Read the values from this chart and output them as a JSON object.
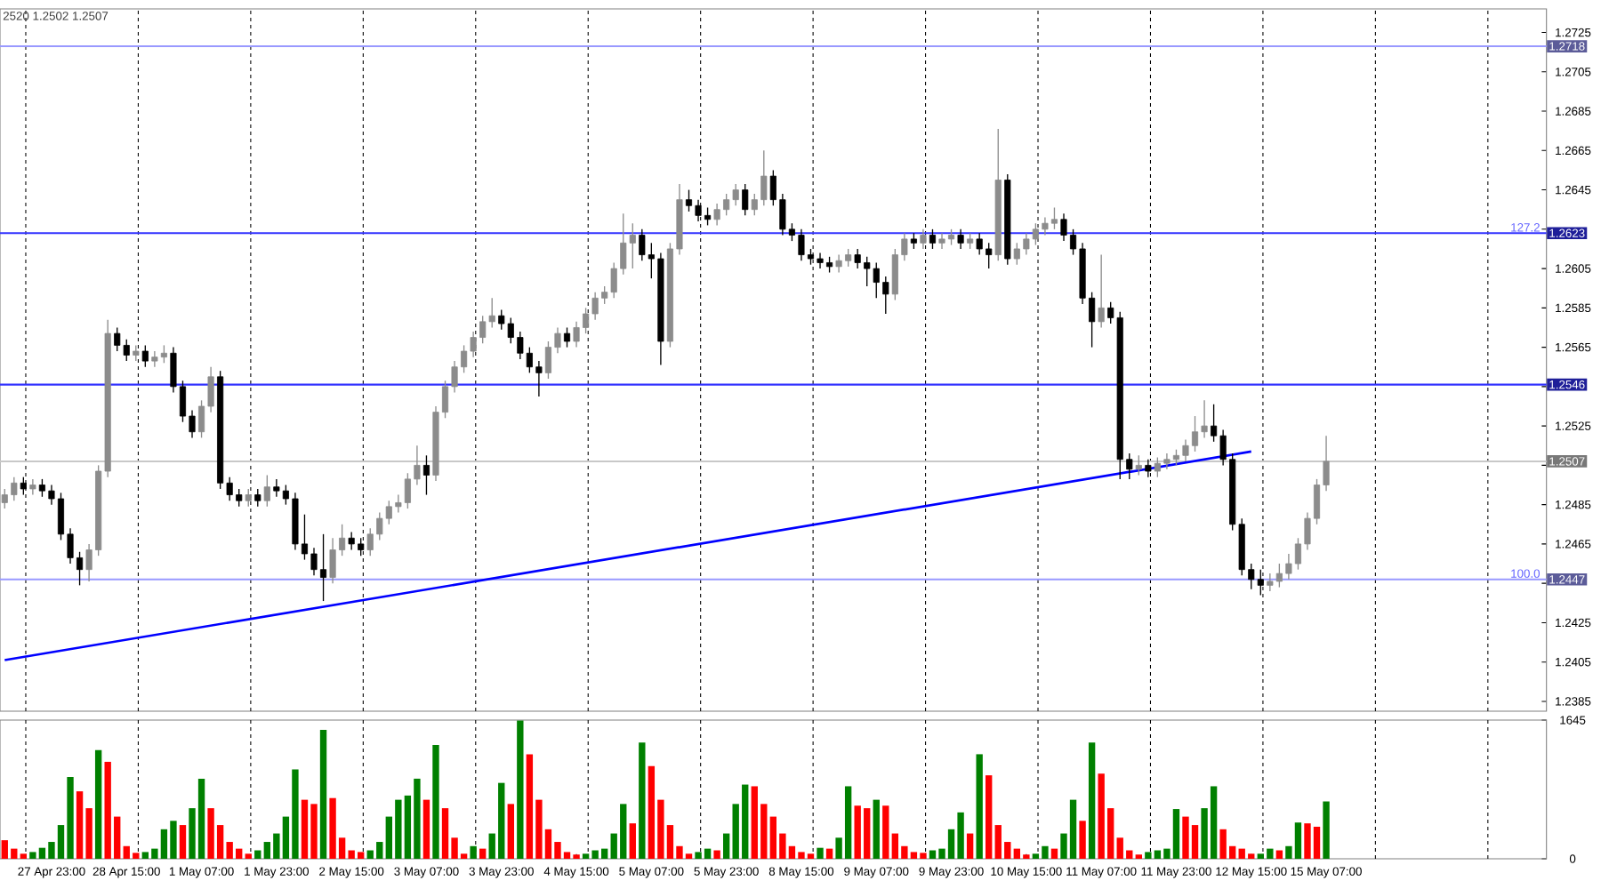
{
  "chart_data": [
    {
      "type": "candlestick",
      "categories": [
        null,
        null,
        null,
        null,
        null,
        null,
        null,
        null,
        null,
        null,
        null,
        null,
        null,
        null,
        null,
        null,
        null,
        null,
        null,
        null,
        null,
        null,
        null,
        null,
        null,
        null,
        null,
        null,
        null,
        null,
        null,
        null,
        null,
        null,
        null,
        null,
        null,
        null,
        null,
        null,
        null,
        null,
        null,
        null,
        null,
        null,
        null,
        null,
        null,
        null,
        null,
        null,
        null,
        null,
        null,
        null,
        null,
        null,
        null,
        null,
        null,
        null,
        null,
        null,
        null,
        null,
        null,
        null,
        null,
        null,
        null,
        null,
        null,
        null,
        null,
        null,
        null,
        null,
        null,
        null,
        null,
        null,
        null,
        null,
        null,
        null,
        null,
        null,
        null,
        null,
        null,
        null,
        null,
        null,
        null,
        null,
        null,
        null,
        null,
        null,
        null,
        null,
        null,
        null,
        null,
        null,
        null,
        null,
        null,
        null,
        null,
        null,
        null,
        null,
        null,
        null,
        null,
        null,
        null,
        null,
        null,
        null,
        null,
        null,
        null,
        null,
        null,
        null,
        null,
        null,
        null,
        null,
        null,
        null,
        null,
        null,
        null,
        null,
        null,
        null,
        null,
        null,
        null,
        null,
        null,
        null,
        null,
        null,
        null,
        null,
        null,
        null,
        null,
        null,
        null,
        null,
        null,
        null,
        null,
        null,
        null,
        null,
        null,
        null,
        null
      ],
      "ohlc": [
        [
          1.2486,
          1.2493,
          1.2483,
          1.249
        ],
        [
          1.249,
          1.2499,
          1.2487,
          1.2496
        ],
        [
          1.2496,
          1.2499,
          1.249,
          1.2493
        ],
        [
          1.2493,
          1.2498,
          1.249,
          1.2495
        ],
        [
          1.2495,
          1.2498,
          1.2489,
          1.2492
        ],
        [
          1.2492,
          1.2495,
          1.2485,
          1.2488
        ],
        [
          1.2488,
          1.2491,
          1.2467,
          1.247
        ],
        [
          1.247,
          1.2473,
          1.2455,
          1.2458
        ],
        [
          1.2458,
          1.2461,
          1.2444,
          1.2452
        ],
        [
          1.2452,
          1.2465,
          1.2446,
          1.2462
        ],
        [
          1.2462,
          1.2505,
          1.2459,
          1.2502
        ],
        [
          1.2502,
          1.2579,
          1.2499,
          1.2572
        ],
        [
          1.2572,
          1.2575,
          1.2563,
          1.2566
        ],
        [
          1.2566,
          1.2569,
          1.2558,
          1.2561
        ],
        [
          1.2561,
          1.2566,
          1.2558,
          1.2563
        ],
        [
          1.2563,
          1.2566,
          1.2555,
          1.2558
        ],
        [
          1.2558,
          1.2563,
          1.2555,
          1.256
        ],
        [
          1.256,
          1.2566,
          1.2557,
          1.2562
        ],
        [
          1.2562,
          1.2565,
          1.2542,
          1.2545
        ],
        [
          1.2545,
          1.2548,
          1.2527,
          1.253
        ],
        [
          1.253,
          1.2533,
          1.2519,
          1.2522
        ],
        [
          1.2522,
          1.2538,
          1.2519,
          1.2535
        ],
        [
          1.2535,
          1.2555,
          1.2532,
          1.255
        ],
        [
          1.255,
          1.2553,
          1.2493,
          1.2496
        ],
        [
          1.2496,
          1.2499,
          1.2487,
          1.249
        ],
        [
          1.249,
          1.2493,
          1.2484,
          1.2487
        ],
        [
          1.2487,
          1.2493,
          1.2484,
          1.249
        ],
        [
          1.249,
          1.2493,
          1.2484,
          1.2487
        ],
        [
          1.2487,
          1.25,
          1.2484,
          1.2494
        ],
        [
          1.2494,
          1.2498,
          1.2489,
          1.2492
        ],
        [
          1.2492,
          1.2495,
          1.2485,
          1.2488
        ],
        [
          1.2488,
          1.2491,
          1.2462,
          1.2465
        ],
        [
          1.2465,
          1.248,
          1.2457,
          1.246
        ],
        [
          1.246,
          1.2463,
          1.2449,
          1.2452
        ],
        [
          1.2452,
          1.247,
          1.2436,
          1.2448
        ],
        [
          1.2448,
          1.2468,
          1.2445,
          1.2462
        ],
        [
          1.2462,
          1.2475,
          1.2459,
          1.2468
        ],
        [
          1.2468,
          1.2471,
          1.2462,
          1.2465
        ],
        [
          1.2465,
          1.2468,
          1.2459,
          1.2462
        ],
        [
          1.2462,
          1.2473,
          1.2459,
          1.247
        ],
        [
          1.247,
          1.2481,
          1.2467,
          1.2478
        ],
        [
          1.2478,
          1.2487,
          1.2475,
          1.2484
        ],
        [
          1.2484,
          1.249,
          1.2481,
          1.2486
        ],
        [
          1.2486,
          1.2501,
          1.2483,
          1.2498
        ],
        [
          1.2498,
          1.2515,
          1.2495,
          1.2505
        ],
        [
          1.2505,
          1.251,
          1.249,
          1.25
        ],
        [
          1.25,
          1.2535,
          1.2497,
          1.2532
        ],
        [
          1.2532,
          1.2548,
          1.2529,
          1.2545
        ],
        [
          1.2545,
          1.2558,
          1.2542,
          1.2555
        ],
        [
          1.2555,
          1.2566,
          1.2552,
          1.2563
        ],
        [
          1.2563,
          1.2573,
          1.256,
          1.257
        ],
        [
          1.257,
          1.2581,
          1.2567,
          1.2578
        ],
        [
          1.2578,
          1.259,
          1.2575,
          1.2581
        ],
        [
          1.2581,
          1.2584,
          1.2574,
          1.2577
        ],
        [
          1.2577,
          1.258,
          1.2567,
          1.257
        ],
        [
          1.257,
          1.2573,
          1.2559,
          1.2562
        ],
        [
          1.2562,
          1.2565,
          1.2552,
          1.2555
        ],
        [
          1.2555,
          1.2558,
          1.254,
          1.2552
        ],
        [
          1.2552,
          1.2568,
          1.2549,
          1.2565
        ],
        [
          1.2565,
          1.2575,
          1.2562,
          1.2572
        ],
        [
          1.2572,
          1.2575,
          1.2565,
          1.2568
        ],
        [
          1.2568,
          1.2578,
          1.2565,
          1.2575
        ],
        [
          1.2575,
          1.2585,
          1.2572,
          1.2582
        ],
        [
          1.2582,
          1.2593,
          1.2579,
          1.259
        ],
        [
          1.259,
          1.2596,
          1.2587,
          1.2593
        ],
        [
          1.2593,
          1.2608,
          1.259,
          1.2605
        ],
        [
          1.2605,
          1.2633,
          1.2602,
          1.2618
        ],
        [
          1.2618,
          1.2628,
          1.2605,
          1.2622
        ],
        [
          1.2622,
          1.2625,
          1.2609,
          1.2612
        ],
        [
          1.2612,
          1.2618,
          1.26,
          1.261
        ],
        [
          1.261,
          1.2613,
          1.2556,
          1.2568
        ],
        [
          1.2568,
          1.2618,
          1.2565,
          1.2615
        ],
        [
          1.2615,
          1.2648,
          1.2612,
          1.264
        ],
        [
          1.264,
          1.2645,
          1.2634,
          1.2637
        ],
        [
          1.2637,
          1.264,
          1.2629,
          1.2632
        ],
        [
          1.2632,
          1.2636,
          1.2627,
          1.263
        ],
        [
          1.263,
          1.2638,
          1.2627,
          1.2635
        ],
        [
          1.2635,
          1.2643,
          1.2632,
          1.264
        ],
        [
          1.264,
          1.2648,
          1.2637,
          1.2645
        ],
        [
          1.2645,
          1.2648,
          1.2632,
          1.2635
        ],
        [
          1.2635,
          1.2643,
          1.2632,
          1.264
        ],
        [
          1.264,
          1.2665,
          1.2637,
          1.2652
        ],
        [
          1.2652,
          1.2655,
          1.2637,
          1.264
        ],
        [
          1.264,
          1.2643,
          1.2622,
          1.2625
        ],
        [
          1.2625,
          1.2628,
          1.2619,
          1.2622
        ],
        [
          1.2622,
          1.2625,
          1.2609,
          1.2612
        ],
        [
          1.2612,
          1.2615,
          1.2607,
          1.261
        ],
        [
          1.261,
          1.2613,
          1.2605,
          1.2608
        ],
        [
          1.2608,
          1.2611,
          1.2603,
          1.2606
        ],
        [
          1.2606,
          1.2612,
          1.2603,
          1.2609
        ],
        [
          1.2609,
          1.2615,
          1.2606,
          1.2612
        ],
        [
          1.2612,
          1.2615,
          1.2605,
          1.2608
        ],
        [
          1.2608,
          1.2611,
          1.2596,
          1.2605
        ],
        [
          1.2605,
          1.2608,
          1.259,
          1.2598
        ],
        [
          1.2598,
          1.2601,
          1.2582,
          1.2592
        ],
        [
          1.2592,
          1.2615,
          1.2589,
          1.2612
        ],
        [
          1.2612,
          1.2623,
          1.2609,
          1.262
        ],
        [
          1.262,
          1.2623,
          1.2615,
          1.2618
        ],
        [
          1.2618,
          1.2625,
          1.2615,
          1.2622
        ],
        [
          1.2622,
          1.2625,
          1.2615,
          1.2618
        ],
        [
          1.2618,
          1.2623,
          1.2615,
          1.262
        ],
        [
          1.262,
          1.2625,
          1.2617,
          1.2622
        ],
        [
          1.2622,
          1.2625,
          1.2615,
          1.2618
        ],
        [
          1.2618,
          1.2623,
          1.2615,
          1.262
        ],
        [
          1.262,
          1.2623,
          1.2612,
          1.2615
        ],
        [
          1.2615,
          1.2618,
          1.2605,
          1.2612
        ],
        [
          1.2612,
          1.2676,
          1.2609,
          1.265
        ],
        [
          1.265,
          1.2653,
          1.2607,
          1.261
        ],
        [
          1.261,
          1.2618,
          1.2607,
          1.2615
        ],
        [
          1.2615,
          1.2623,
          1.2612,
          1.262
        ],
        [
          1.262,
          1.2628,
          1.2617,
          1.2625
        ],
        [
          1.2625,
          1.2631,
          1.2622,
          1.2628
        ],
        [
          1.2628,
          1.2636,
          1.2625,
          1.263
        ],
        [
          1.263,
          1.2633,
          1.2619,
          1.2622
        ],
        [
          1.2622,
          1.2625,
          1.2612,
          1.2615
        ],
        [
          1.2615,
          1.2618,
          1.2587,
          1.259
        ],
        [
          1.259,
          1.2593,
          1.2565,
          1.2578
        ],
        [
          1.2578,
          1.2612,
          1.2575,
          1.2585
        ],
        [
          1.2585,
          1.2588,
          1.2577,
          1.258
        ],
        [
          1.258,
          1.2583,
          1.2498,
          1.2508
        ],
        [
          1.2508,
          1.2511,
          1.2498,
          1.2503
        ],
        [
          1.2503,
          1.251,
          1.25,
          1.2505
        ],
        [
          1.2505,
          1.2508,
          1.2499,
          1.2502
        ],
        [
          1.2502,
          1.2509,
          1.2499,
          1.2506
        ],
        [
          1.2506,
          1.2511,
          1.2503,
          1.2508
        ],
        [
          1.2508,
          1.2513,
          1.2505,
          1.251
        ],
        [
          1.251,
          1.2518,
          1.2507,
          1.2515
        ],
        [
          1.2515,
          1.253,
          1.2512,
          1.2522
        ],
        [
          1.2522,
          1.2538,
          1.2519,
          1.2525
        ],
        [
          1.2525,
          1.2536,
          1.2517,
          1.252
        ],
        [
          1.252,
          1.2523,
          1.2505,
          1.2508
        ],
        [
          1.2508,
          1.2511,
          1.2472,
          1.2475
        ],
        [
          1.2475,
          1.2478,
          1.2449,
          1.2452
        ],
        [
          1.2452,
          1.2455,
          1.2442,
          1.2447
        ],
        [
          1.2447,
          1.2452,
          1.2439,
          1.2444
        ],
        [
          1.2444,
          1.245,
          1.2441,
          1.2446
        ],
        [
          1.2446,
          1.2455,
          1.2443,
          1.245
        ],
        [
          1.245,
          1.246,
          1.2447,
          1.2455
        ],
        [
          1.2455,
          1.2468,
          1.2452,
          1.2465
        ],
        [
          1.2465,
          1.2481,
          1.2462,
          1.2478
        ],
        [
          1.2478,
          1.2498,
          1.2475,
          1.2495
        ],
        [
          1.2495,
          1.252,
          1.2492,
          1.2507
        ],
        null,
        null,
        null,
        null,
        null,
        null,
        null,
        null,
        null,
        null,
        null,
        null,
        null,
        null,
        null,
        null,
        null,
        null,
        null,
        null,
        null,
        null,
        null
      ],
      "ylim": [
        1.238,
        1.2737
      ],
      "yticks": [
        1.2385,
        1.2405,
        1.2425,
        {
          "value": 1.2445,
          "label": null
        },
        1.2465,
        1.2485,
        {
          "value": 1.2505,
          "label": null
        },
        1.2525,
        {
          "value": 1.2545,
          "label": null
        },
        1.2565,
        1.2585,
        1.2605,
        {
          "value": 1.2625,
          "label": null
        },
        1.2645,
        1.2665,
        1.2685,
        1.2705,
        1.2725
      ],
      "tick_labels": "y",
      "grid": "x",
      "series": [
        {
          "type": "line",
          "values": [
            1.2406,
            null,
            null,
            null,
            null,
            null,
            null,
            null,
            null,
            null,
            null,
            null,
            null,
            null,
            null,
            null,
            null,
            null,
            null,
            null,
            null,
            null,
            null,
            null,
            null,
            null,
            null,
            null,
            null,
            null,
            null,
            null,
            null,
            null,
            null,
            null,
            null,
            null,
            null,
            null,
            null,
            null,
            null,
            null,
            null,
            null,
            null,
            null,
            null,
            null,
            null,
            null,
            null,
            null,
            null,
            null,
            null,
            null,
            null,
            null,
            null,
            null,
            null,
            null,
            null,
            null,
            null,
            null,
            null,
            null,
            null,
            null,
            null,
            null,
            null,
            null,
            null,
            null,
            null,
            null,
            null,
            null,
            null,
            null,
            null,
            null,
            null,
            null,
            null,
            null,
            null,
            null,
            null,
            null,
            null,
            null,
            null,
            null,
            null,
            null,
            null,
            null,
            null,
            null,
            null,
            null,
            null,
            null,
            null,
            null,
            null,
            null,
            null,
            null,
            null,
            null,
            null,
            null,
            null,
            null,
            null,
            null,
            null,
            null,
            null,
            null,
            null,
            null,
            null,
            null,
            null,
            null,
            null,
            1.2512,
            null,
            null,
            null,
            null,
            null,
            null,
            null,
            null,
            null,
            null,
            null,
            null,
            null,
            null,
            null,
            null,
            null,
            null,
            null,
            null,
            null,
            null,
            null,
            null,
            null,
            null,
            null,
            null,
            null,
            null,
            null
          ],
          "color": "#0000ff"
        }
      ],
      "ref_lines": [
        {
          "axis": "y",
          "value": 1.2718,
          "label": "1.2718",
          "color": "#9999ff"
        },
        {
          "axis": "y",
          "value": 1.2623,
          "label": "1.2623",
          "color": "#3333ff"
        },
        {
          "axis": "y",
          "value": 1.2546,
          "label": "1.2546",
          "color": "#3333ff"
        },
        {
          "axis": "y",
          "value": 1.2507,
          "label": "1.2507",
          "color": "#c8c8c8"
        },
        {
          "axis": "y",
          "value": 1.2447,
          "label": "1.2447",
          "color": "#9999ff"
        }
      ],
      "annotations": [
        "2520 1.2502 1.2507",
        {
          "text": "127.2",
          "y": 1.2623
        },
        {
          "text": "100.0",
          "y": 1.2447
        }
      ]
    },
    {
      "type": "bar",
      "categories": [
        null,
        null,
        null,
        null,
        null,
        "27 Apr 23:00",
        null,
        null,
        null,
        null,
        null,
        null,
        null,
        "28 Apr 15:00",
        null,
        null,
        null,
        null,
        null,
        null,
        null,
        "1 May 07:00",
        null,
        null,
        null,
        null,
        null,
        null,
        null,
        "1 May 23:00",
        null,
        null,
        null,
        null,
        null,
        null,
        null,
        "2 May 15:00",
        null,
        null,
        null,
        null,
        null,
        null,
        null,
        "3 May 07:00",
        null,
        null,
        null,
        null,
        null,
        null,
        null,
        "3 May 23:00",
        null,
        null,
        null,
        null,
        null,
        null,
        null,
        "4 May 15:00",
        null,
        null,
        null,
        null,
        null,
        null,
        null,
        "5 May 07:00",
        null,
        null,
        null,
        null,
        null,
        null,
        null,
        "5 May 23:00",
        null,
        null,
        null,
        null,
        null,
        null,
        null,
        "8 May 15:00",
        null,
        null,
        null,
        null,
        null,
        null,
        null,
        "9 May 07:00",
        null,
        null,
        null,
        null,
        null,
        null,
        null,
        "9 May 23:00",
        null,
        null,
        null,
        null,
        null,
        null,
        null,
        "10 May 15:00",
        null,
        null,
        null,
        null,
        null,
        null,
        null,
        "11 May 07:00",
        null,
        null,
        null,
        null,
        null,
        null,
        null,
        "11 May 23:00",
        null,
        null,
        null,
        null,
        null,
        null,
        null,
        "12 May 15:00",
        null,
        null,
        null,
        null,
        null,
        null,
        null,
        "15 May 07:00",
        null,
        null,
        null,
        null,
        null,
        null,
        null,
        null,
        null,
        null,
        null,
        null,
        null,
        null,
        null,
        null,
        null,
        null,
        null,
        null,
        null,
        null,
        null
      ],
      "values": [
        220,
        120,
        60,
        80,
        130,
        200,
        400,
        970,
        800,
        600,
        1290,
        1150,
        500,
        150,
        70,
        80,
        120,
        350,
        450,
        400,
        600,
        950,
        600,
        400,
        200,
        120,
        60,
        100,
        200,
        300,
        500,
        1060,
        700,
        650,
        1530,
        720,
        250,
        100,
        80,
        100,
        200,
        500,
        700,
        750,
        950,
        700,
        1350,
        600,
        250,
        60,
        150,
        120,
        300,
        900,
        650,
        1640,
        1240,
        700,
        350,
        200,
        80,
        50,
        60,
        100,
        120,
        300,
        650,
        420,
        1380,
        1100,
        700,
        400,
        150,
        60,
        80,
        120,
        100,
        300,
        650,
        880,
        860,
        650,
        500,
        300,
        150,
        80,
        60,
        130,
        120,
        250,
        860,
        630,
        600,
        700,
        630,
        300,
        150,
        80,
        70,
        100,
        120,
        350,
        550,
        300,
        1240,
        990,
        400,
        200,
        120,
        50,
        60,
        150,
        120,
        300,
        700,
        450,
        1380,
        1010,
        600,
        250,
        100,
        50,
        80,
        100,
        120,
        590,
        500,
        400,
        600,
        860,
        350,
        150,
        120,
        60,
        60,
        120,
        100,
        150,
        430,
        420,
        380,
        680,
        null,
        null,
        null,
        null,
        null,
        null,
        null,
        null,
        null,
        null,
        null,
        null,
        null,
        null,
        null,
        null,
        null,
        null,
        null,
        null,
        null,
        null,
        null
      ],
      "colors": [
        "#ff0000",
        "#ff0000",
        "#ff0000",
        "#008000",
        "#008000",
        "#008000",
        "#008000",
        "#008000",
        "#ff0000",
        "#ff0000",
        "#008000",
        "#ff0000",
        "#ff0000",
        "#ff0000",
        "#ff0000",
        "#008000",
        "#008000",
        "#008000",
        "#008000",
        "#ff0000",
        "#008000",
        "#008000",
        "#ff0000",
        "#ff0000",
        "#ff0000",
        "#ff0000",
        "#ff0000",
        "#008000",
        "#008000",
        "#008000",
        "#008000",
        "#008000",
        "#ff0000",
        "#ff0000",
        "#008000",
        "#ff0000",
        "#ff0000",
        "#ff0000",
        "#ff0000",
        "#008000",
        "#008000",
        "#008000",
        "#008000",
        "#008000",
        "#008000",
        "#ff0000",
        "#008000",
        "#ff0000",
        "#ff0000",
        "#ff0000",
        "#008000",
        "#ff0000",
        "#008000",
        "#008000",
        "#ff0000",
        "#008000",
        "#ff0000",
        "#ff0000",
        "#ff0000",
        "#ff0000",
        "#ff0000",
        "#ff0000",
        "#008000",
        "#008000",
        "#008000",
        "#008000",
        "#008000",
        "#ff0000",
        "#008000",
        "#ff0000",
        "#ff0000",
        "#ff0000",
        "#ff0000",
        "#ff0000",
        "#008000",
        "#008000",
        "#ff0000",
        "#008000",
        "#008000",
        "#008000",
        "#ff0000",
        "#ff0000",
        "#ff0000",
        "#ff0000",
        "#ff0000",
        "#ff0000",
        "#ff0000",
        "#008000",
        "#ff0000",
        "#008000",
        "#008000",
        "#ff0000",
        "#ff0000",
        "#008000",
        "#ff0000",
        "#ff0000",
        "#ff0000",
        "#ff0000",
        "#ff0000",
        "#008000",
        "#008000",
        "#008000",
        "#008000",
        "#ff0000",
        "#008000",
        "#ff0000",
        "#ff0000",
        "#ff0000",
        "#ff0000",
        "#ff0000",
        "#008000",
        "#008000",
        "#ff0000",
        "#008000",
        "#008000",
        "#ff0000",
        "#008000",
        "#ff0000",
        "#ff0000",
        "#ff0000",
        "#ff0000",
        "#ff0000",
        "#008000",
        "#008000",
        "#008000",
        "#008000",
        "#ff0000",
        "#ff0000",
        "#008000",
        "#008000",
        "#ff0000",
        "#ff0000",
        "#ff0000",
        "#ff0000",
        "#008000",
        "#008000",
        "#ff0000",
        "#008000",
        "#008000",
        "#ff0000",
        "#ff0000",
        "#008000",
        null,
        null,
        null,
        null,
        null,
        null,
        null,
        null,
        null,
        null,
        null,
        null,
        null,
        null,
        null,
        null,
        null,
        null,
        null,
        null,
        null,
        null,
        null
      ],
      "ylim": [
        0,
        1645
      ],
      "yticks": [
        0,
        1645
      ],
      "grid": "x"
    }
  ]
}
